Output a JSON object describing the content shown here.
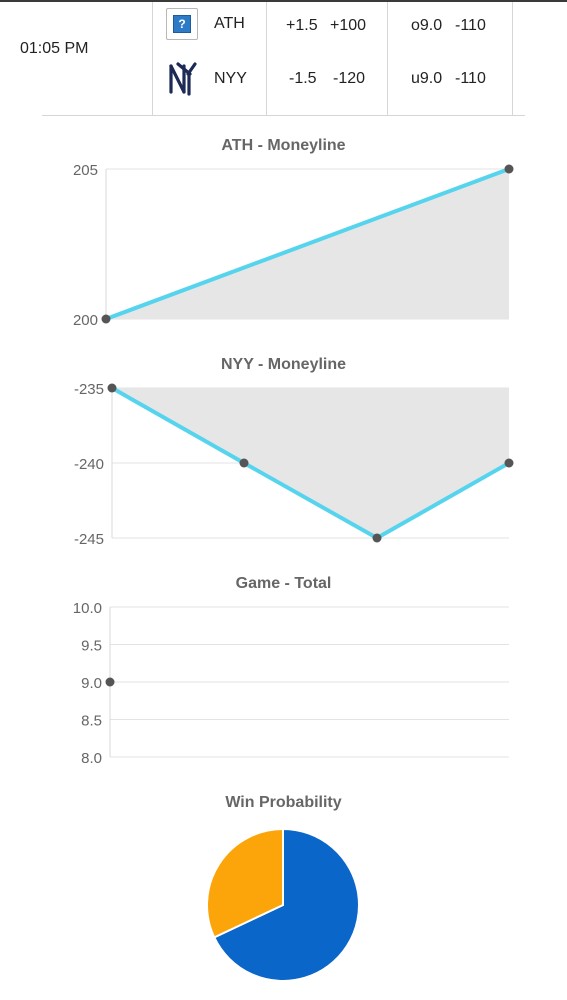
{
  "game": {
    "time": "01:05 PM",
    "away": {
      "team": "ATH",
      "logo_icon": "unknown-team-icon",
      "spread": "+1.5",
      "spread_odds": "+100",
      "total": "o9.0",
      "total_odds": "-110"
    },
    "home": {
      "team": "NYY",
      "logo_icon": "yankees-logo-icon",
      "spread": "-1.5",
      "spread_odds": "-120",
      "total": "u9.0",
      "total_odds": "-110"
    }
  },
  "colors": {
    "line": "#56d4ee",
    "fill": "#e6e6e6",
    "point": "#555555",
    "grid": "#e3e3e3",
    "pie_blue": "#0a66c9",
    "pie_orange": "#fca50a"
  },
  "chart_data": [
    {
      "type": "area",
      "title": "ATH - Moneyline",
      "yticks": [
        "205",
        "200"
      ],
      "ylim": [
        200,
        205
      ],
      "values": [
        200,
        205
      ]
    },
    {
      "type": "area",
      "title": "NYY - Moneyline",
      "yticks": [
        "-235",
        "-240",
        "-245"
      ],
      "ylim": [
        -245,
        -235
      ],
      "values": [
        -235,
        -240,
        -245,
        -240
      ]
    },
    {
      "type": "line",
      "title": "Game - Total",
      "yticks": [
        "10.0",
        "9.5",
        "9.0",
        "8.5",
        "8.0"
      ],
      "ylim": [
        8,
        10
      ],
      "values": [
        9.0
      ]
    },
    {
      "type": "pie",
      "title": "Win Probability",
      "values": [
        68,
        32
      ],
      "colors": [
        "#0a66c9",
        "#fca50a"
      ]
    }
  ]
}
